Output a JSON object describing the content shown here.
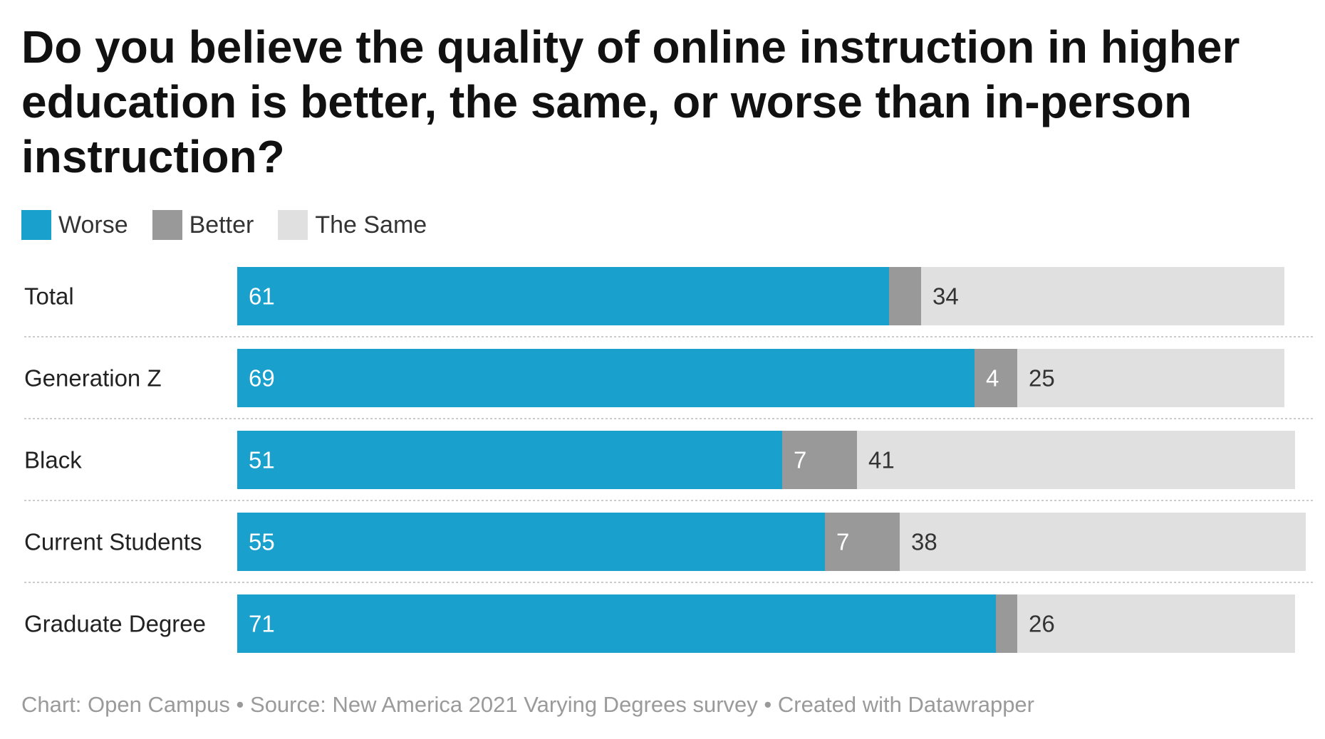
{
  "title": "Do you believe the quality of online instruction in higher education is better, the same, or worse than in-person instruction?",
  "footer": {
    "credit": "Chart: Open Campus",
    "source": "Source: New America 2021 Varying Degrees survey",
    "tool": "Created with Datawrapper",
    "separator": " • "
  },
  "colors": {
    "worse": "#1aa0cc",
    "better": "#999999",
    "same": "#e0e0e0",
    "label_on_dark": "#ffffff",
    "label_on_light": "#333333",
    "row_label": "#222222",
    "divider": "#cccccc"
  },
  "chart_data": {
    "type": "bar",
    "orientation": "horizontal",
    "stacked": true,
    "title": "Do you believe the quality of online instruction in higher education is better, the same, or worse than in-person instruction?",
    "legend_position": "top-left",
    "categories": [
      "Total",
      "Generation Z",
      "Black",
      "Current Students",
      "Graduate Degree"
    ],
    "series": [
      {
        "key": "worse",
        "name": "Worse",
        "values": [
          61,
          69,
          51,
          55,
          71
        ],
        "labels": [
          "61",
          "69",
          "51",
          "55",
          "71"
        ]
      },
      {
        "key": "better",
        "name": "Better",
        "values": [
          3,
          4,
          7,
          7,
          2
        ],
        "labels": [
          "",
          "4",
          "7",
          "7",
          ""
        ]
      },
      {
        "key": "same",
        "name": "The Same",
        "values": [
          34,
          25,
          41,
          38,
          26
        ],
        "labels": [
          "34",
          "25",
          "41",
          "38",
          "26"
        ]
      }
    ],
    "xlim": [
      0,
      100
    ]
  }
}
